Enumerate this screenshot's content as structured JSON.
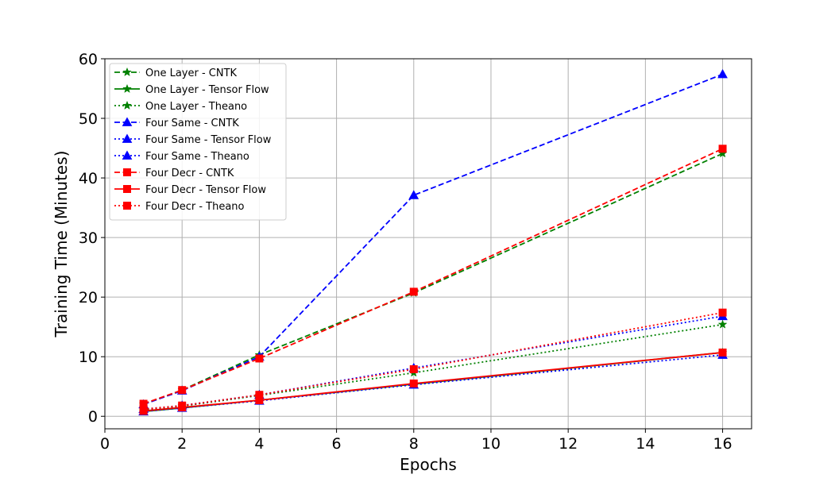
{
  "chart_data": {
    "type": "line",
    "xlabel": "Epochs",
    "ylabel": "Training Time (Minutes)",
    "xlim": [
      0,
      16.75
    ],
    "ylim": [
      -2.1,
      60
    ],
    "xticks": [
      0,
      2,
      4,
      6,
      8,
      10,
      12,
      14,
      16
    ],
    "yticks": [
      0,
      10,
      20,
      30,
      40,
      50,
      60
    ],
    "grid": true,
    "legend_position": "top-left",
    "x": [
      1,
      2,
      4,
      8,
      16
    ],
    "series": [
      {
        "name": "One Layer - CNTK",
        "color": "#008000",
        "dash": "dashed",
        "marker": "star",
        "values": [
          2.0,
          4.4,
          10.3,
          20.7,
          44.1
        ]
      },
      {
        "name": "One Layer - Tensor Flow",
        "color": "#008000",
        "dash": "solid",
        "marker": "star",
        "values": [
          0.8,
          1.4,
          2.7,
          5.4,
          10.7
        ]
      },
      {
        "name": "One Layer - Theano",
        "color": "#008000",
        "dash": "dotted",
        "marker": "star",
        "values": [
          1.1,
          1.7,
          3.5,
          7.3,
          15.4
        ]
      },
      {
        "name": "Four Same - CNTK",
        "color": "#0000ff",
        "dash": "dashed",
        "marker": "triangle",
        "values": [
          2.0,
          4.3,
          10.0,
          37.1,
          57.4
        ]
      },
      {
        "name": "Four Same - Tensor Flow",
        "color": "#0000ff",
        "dash": "dotted",
        "marker": "triangle",
        "values": [
          0.8,
          1.4,
          2.6,
          5.3,
          10.3
        ]
      },
      {
        "name": "Four Same - Theano",
        "color": "#0000ff",
        "dash": "dotted",
        "marker": "triangle",
        "values": [
          1.2,
          1.8,
          3.6,
          8.1,
          16.8
        ]
      },
      {
        "name": "Four Decr - CNTK",
        "color": "#ff0000",
        "dash": "dashed",
        "marker": "square",
        "values": [
          2.1,
          4.4,
          9.7,
          20.9,
          44.9
        ]
      },
      {
        "name": "Four Decr - Tensor Flow",
        "color": "#ff0000",
        "dash": "solid",
        "marker": "square",
        "values": [
          0.9,
          1.5,
          2.7,
          5.5,
          10.7
        ]
      },
      {
        "name": "Four Decr - Theano",
        "color": "#ff0000",
        "dash": "dotted",
        "marker": "square",
        "values": [
          1.2,
          1.8,
          3.6,
          7.9,
          17.4
        ]
      }
    ]
  }
}
